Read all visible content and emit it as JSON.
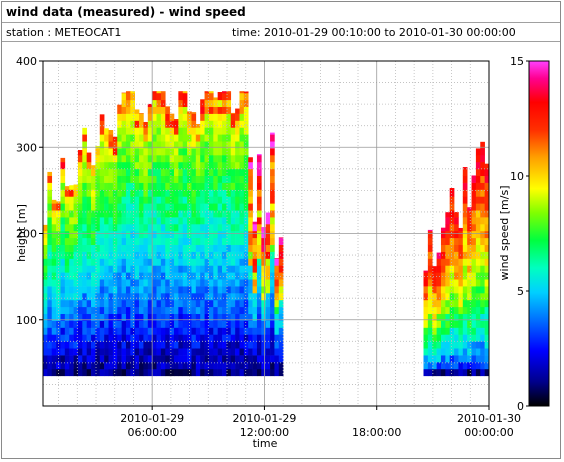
{
  "header": {
    "title": "wind data (measured) - wind speed",
    "station": "station : METEOCAT1",
    "time_range": "time: 2010-01-29 00:10:00 to 2010-01-30 00:00:00"
  },
  "chart_data": {
    "type": "heatmap",
    "title": "wind data (measured) - wind speed",
    "xlabel": "time",
    "ylabel": "height [m]",
    "colorbar_label": "wind speed [m/s]",
    "x_range": [
      "2010-01-29 00:10:00",
      "2010-01-30 00:00:00"
    ],
    "y_range": [
      0,
      400
    ],
    "colorbar_range": [
      0,
      15
    ],
    "x_ticks": [
      {
        "date": "2010-01-29",
        "time": "06:00:00"
      },
      {
        "date": "2010-01-29",
        "time": "12:00:00"
      },
      {
        "date": "",
        "time": "18:00:00"
      },
      {
        "date": "2010-01-30",
        "time": "00:00:00"
      }
    ],
    "y_ticks": [
      "100",
      "200",
      "300",
      "400"
    ],
    "colorbar_ticks": [
      "0",
      "5",
      "10",
      "15"
    ],
    "grid": true,
    "data_gaps": [
      [
        "2010-01-29 13:00",
        "2010-01-29 20:30"
      ]
    ],
    "segments": [
      {
        "time_range": [
          "2010-01-29 00:10",
          "2010-01-29 13:00"
        ],
        "height_range": [
          35,
          365
        ],
        "speed_low_m_s": [
          0,
          4
        ],
        "speed_mid_m_s": [
          5,
          9
        ],
        "speed_top_m_s": [
          10,
          15
        ]
      },
      {
        "time_range": [
          "2010-01-29 20:30",
          "2010-01-30 00:00"
        ],
        "height_range": [
          35,
          320
        ],
        "speed_low_m_s": [
          0,
          3
        ],
        "speed_mid_m_s": [
          5,
          9
        ],
        "speed_top_m_s": [
          10,
          15
        ]
      }
    ],
    "colormap": [
      "#000000",
      "#00008b",
      "#0000ff",
      "#0070ff",
      "#00d0ff",
      "#00ffc0",
      "#00ff40",
      "#80ff00",
      "#ffff00",
      "#ffa000",
      "#ff3000",
      "#ff0000",
      "#ff0090",
      "#ff40ff"
    ]
  }
}
